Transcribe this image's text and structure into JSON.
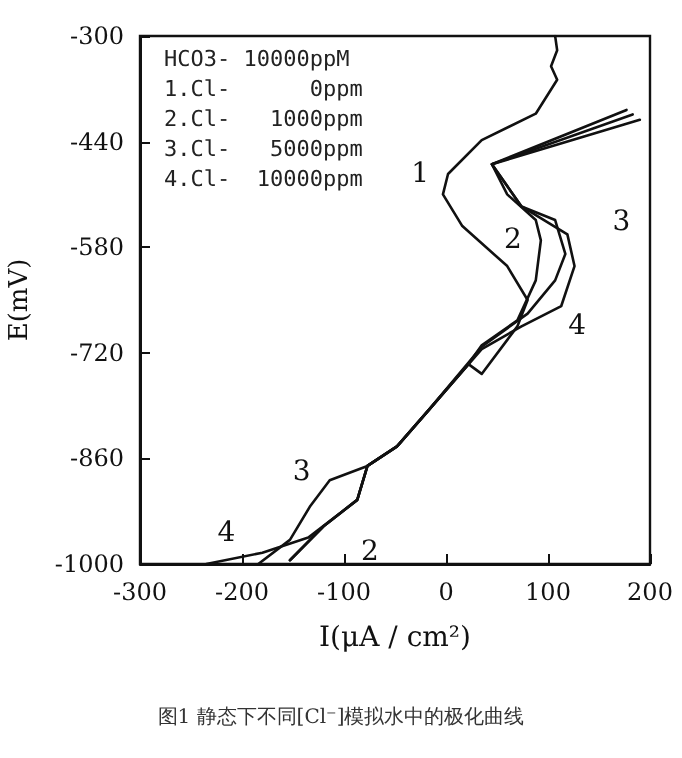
{
  "chart_data": {
    "type": "line",
    "title": "图1 静态下不同[Cl⁻]模拟水中的极化曲线",
    "xlabel": "I(μA / cm²)",
    "ylabel": "E(mV)",
    "xlim": [
      -300,
      200
    ],
    "xticks": [
      -300,
      -200,
      -100,
      0,
      100,
      200
    ],
    "ylim": [
      -1000,
      -300
    ],
    "yticks": [
      -1000,
      -860,
      -720,
      -580,
      -440,
      -300
    ],
    "marker": "none",
    "line_style": "solid",
    "series": [
      {
        "name": "1",
        "color": "#111111",
        "x": [
          107,
          109,
          103,
          109,
          88,
          35,
          2,
          -3,
          16,
          60,
          80,
          70,
          35,
          22,
          -17,
          -48,
          -77,
          -87,
          -120,
          -153
        ],
        "values": [
          -300,
          -319,
          -340,
          -358,
          -403,
          -438,
          -483,
          -510,
          -552,
          -605,
          -650,
          -685,
          -748,
          -735,
          -796,
          -844,
          -870,
          -915,
          -950,
          -995
        ]
      },
      {
        "name": "2",
        "color": "#111111",
        "x": [
          177,
          45,
          60,
          88,
          93,
          88,
          70,
          35,
          22,
          -17,
          -48,
          -77,
          -87,
          -120,
          -153
        ],
        "values": [
          -398,
          -470,
          -510,
          -544,
          -571,
          -624,
          -677,
          -710,
          -735,
          -796,
          -844,
          -870,
          -915,
          -950,
          -995
        ]
      },
      {
        "name": "3",
        "color": "#111111",
        "x": [
          183,
          45,
          74,
          107,
          117,
          107,
          80,
          35,
          -17,
          -48,
          -77,
          -114,
          -133,
          -153,
          -184
        ],
        "values": [
          -404,
          -470,
          -526,
          -544,
          -589,
          -624,
          -668,
          -712,
          -796,
          -844,
          -870,
          -889,
          -923,
          -968,
          -1000
        ]
      },
      {
        "name": "4",
        "color": "#111111",
        "x": [
          190,
          45,
          74,
          119,
          126,
          113,
          74,
          35,
          -17,
          -48,
          -77,
          -87,
          -135,
          -180,
          -235
        ],
        "values": [
          -411,
          -470,
          -526,
          -563,
          -605,
          -658,
          -685,
          -715,
          -796,
          -844,
          -870,
          -915,
          -965,
          -985,
          -1000
        ]
      }
    ],
    "annotations": [
      "HCO3- 10000ppM",
      "1.Cl-      0ppm",
      "2.Cl-   1000ppm",
      "3.Cl-   5000ppm",
      "4.Cl-  10000ppm"
    ]
  }
}
